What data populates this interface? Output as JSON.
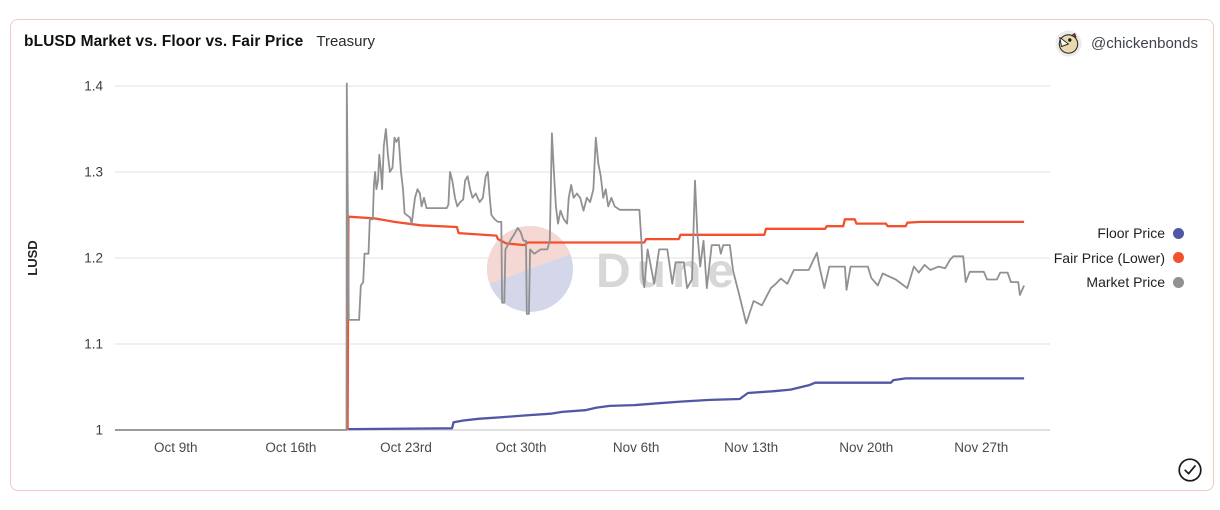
{
  "header": {
    "title": "bLUSD Market vs. Floor vs. Fair Price",
    "subtitle": "Treasury",
    "attribution": "@chickenbonds"
  },
  "watermark": {
    "text": "Dune"
  },
  "colors": {
    "card_border": "#f2c9c4",
    "floor": "#5157a4",
    "fair": "#f4502e",
    "market": "#919191",
    "grid": "#ebebeb",
    "baseline": "#e0e0e0",
    "watermark_pink": "#f5d8d3",
    "watermark_blue": "#d4d7e9",
    "watermark_text": "#d7d7d7"
  },
  "legend": [
    {
      "label": "Floor Price",
      "color": "#5157a4"
    },
    {
      "label": "Fair Price (Lower)",
      "color": "#f4502e"
    },
    {
      "label": "Market Price",
      "color": "#919191"
    }
  ],
  "chart_data": {
    "type": "line",
    "title": "bLUSD Market vs. Floor vs. Fair Price",
    "xlabel": "",
    "ylabel": "LUSD",
    "ylim": [
      1.0,
      1.42
    ],
    "xlim": [
      0,
      57
    ],
    "x_unit": "days (0 = Oct 5 2022)",
    "grid": "horizontal",
    "legend_position": "right",
    "y_ticks": [
      {
        "label": "1",
        "value": 1.0
      },
      {
        "label": "1.1",
        "value": 1.1
      },
      {
        "label": "1.2",
        "value": 1.2
      },
      {
        "label": "1.3",
        "value": 1.3
      },
      {
        "label": "1.4",
        "value": 1.4
      }
    ],
    "x_ticks": [
      {
        "label": "Oct 9th",
        "day": 3.7
      },
      {
        "label": "Oct 16th",
        "day": 10.7
      },
      {
        "label": "Oct 23rd",
        "day": 17.7
      },
      {
        "label": "Oct 30th",
        "day": 24.7
      },
      {
        "label": "Nov 6th",
        "day": 31.7
      },
      {
        "label": "Nov 13th",
        "day": 38.7
      },
      {
        "label": "Nov 20th",
        "day": 45.7
      },
      {
        "label": "Nov 27th",
        "day": 52.7
      }
    ],
    "series": [
      {
        "name": "Floor Price",
        "color": "#5157a4",
        "width": 2.3,
        "points": [
          [
            14.2,
            1.001
          ],
          [
            20.5,
            1.002
          ],
          [
            20.6,
            1.009
          ],
          [
            21.2,
            1.011
          ],
          [
            22.1,
            1.013
          ],
          [
            23.6,
            1.015
          ],
          [
            25.0,
            1.017
          ],
          [
            26.5,
            1.019
          ],
          [
            27.2,
            1.021
          ],
          [
            28.6,
            1.023
          ],
          [
            29.3,
            1.026
          ],
          [
            30.1,
            1.028
          ],
          [
            31.6,
            1.029
          ],
          [
            33.0,
            1.031
          ],
          [
            34.4,
            1.033
          ],
          [
            36.2,
            1.035
          ],
          [
            38.0,
            1.036
          ],
          [
            38.5,
            1.043
          ],
          [
            40.0,
            1.045
          ],
          [
            41.1,
            1.047
          ],
          [
            42.2,
            1.052
          ],
          [
            42.6,
            1.055
          ],
          [
            47.2,
            1.055
          ],
          [
            47.35,
            1.058
          ],
          [
            48.1,
            1.06
          ],
          [
            55.3,
            1.06
          ]
        ]
      },
      {
        "name": "Fair Price (Lower)",
        "color": "#f4502e",
        "width": 2.3,
        "points": [
          [
            14.15,
            1.0
          ],
          [
            14.2,
            1.248
          ],
          [
            15.8,
            1.246
          ],
          [
            17.0,
            1.242
          ],
          [
            18.6,
            1.238
          ],
          [
            20.8,
            1.236
          ],
          [
            20.9,
            1.229
          ],
          [
            23.2,
            1.226
          ],
          [
            23.3,
            1.222
          ],
          [
            23.8,
            1.217
          ],
          [
            24.9,
            1.215
          ],
          [
            25.1,
            1.218
          ],
          [
            32.2,
            1.218
          ],
          [
            32.3,
            1.222
          ],
          [
            34.3,
            1.222
          ],
          [
            34.4,
            1.227
          ],
          [
            39.5,
            1.227
          ],
          [
            39.6,
            1.234
          ],
          [
            43.2,
            1.234
          ],
          [
            43.3,
            1.237
          ],
          [
            44.3,
            1.237
          ],
          [
            44.4,
            1.245
          ],
          [
            45.0,
            1.245
          ],
          [
            45.1,
            1.24
          ],
          [
            46.9,
            1.24
          ],
          [
            47.0,
            1.237
          ],
          [
            48.1,
            1.237
          ],
          [
            48.2,
            1.241
          ],
          [
            49.0,
            1.242
          ],
          [
            55.3,
            1.242
          ]
        ]
      },
      {
        "name": "Market Price",
        "color": "#919191",
        "width": 1.8,
        "points": [
          [
            0,
            1.0
          ],
          [
            14.08,
            1.0
          ],
          [
            14.1,
            1.403
          ],
          [
            14.22,
            1.128
          ],
          [
            14.85,
            1.128
          ],
          [
            14.95,
            1.168
          ],
          [
            15.1,
            1.172
          ],
          [
            15.18,
            1.205
          ],
          [
            15.42,
            1.205
          ],
          [
            15.5,
            1.245
          ],
          [
            15.68,
            1.245
          ],
          [
            15.75,
            1.285
          ],
          [
            15.82,
            1.3
          ],
          [
            15.9,
            1.28
          ],
          [
            16.0,
            1.29
          ],
          [
            16.08,
            1.32
          ],
          [
            16.18,
            1.3
          ],
          [
            16.25,
            1.28
          ],
          [
            16.35,
            1.33
          ],
          [
            16.48,
            1.35
          ],
          [
            16.6,
            1.32
          ],
          [
            16.72,
            1.3
          ],
          [
            16.88,
            1.305
          ],
          [
            17.0,
            1.34
          ],
          [
            17.12,
            1.335
          ],
          [
            17.25,
            1.34
          ],
          [
            17.4,
            1.3
          ],
          [
            17.52,
            1.28
          ],
          [
            17.62,
            1.252
          ],
          [
            17.95,
            1.247
          ],
          [
            18.05,
            1.24
          ],
          [
            18.25,
            1.27
          ],
          [
            18.4,
            1.28
          ],
          [
            18.55,
            1.275
          ],
          [
            18.65,
            1.26
          ],
          [
            18.8,
            1.27
          ],
          [
            18.95,
            1.258
          ],
          [
            20.18,
            1.258
          ],
          [
            20.28,
            1.262
          ],
          [
            20.38,
            1.3
          ],
          [
            20.52,
            1.29
          ],
          [
            20.68,
            1.27
          ],
          [
            20.82,
            1.26
          ],
          [
            21.0,
            1.265
          ],
          [
            21.18,
            1.268
          ],
          [
            21.3,
            1.29
          ],
          [
            21.45,
            1.295
          ],
          [
            21.6,
            1.28
          ],
          [
            21.75,
            1.27
          ],
          [
            21.95,
            1.275
          ],
          [
            22.18,
            1.265
          ],
          [
            22.38,
            1.27
          ],
          [
            22.55,
            1.295
          ],
          [
            22.68,
            1.3
          ],
          [
            22.8,
            1.27
          ],
          [
            22.9,
            1.25
          ],
          [
            23.1,
            1.245
          ],
          [
            23.3,
            1.242
          ],
          [
            23.5,
            1.242
          ],
          [
            23.55,
            1.148
          ],
          [
            23.68,
            1.148
          ],
          [
            23.75,
            1.21
          ],
          [
            23.9,
            1.215
          ],
          [
            24.1,
            1.222
          ],
          [
            24.3,
            1.228
          ],
          [
            24.5,
            1.235
          ],
          [
            24.68,
            1.23
          ],
          [
            24.85,
            1.22
          ],
          [
            25.0,
            1.22
          ],
          [
            25.05,
            1.135
          ],
          [
            25.18,
            1.135
          ],
          [
            25.25,
            1.21
          ],
          [
            25.5,
            1.205
          ],
          [
            25.9,
            1.21
          ],
          [
            26.3,
            1.21
          ],
          [
            26.45,
            1.22
          ],
          [
            26.58,
            1.345
          ],
          [
            26.7,
            1.3
          ],
          [
            26.82,
            1.26
          ],
          [
            26.95,
            1.24
          ],
          [
            27.1,
            1.255
          ],
          [
            27.3,
            1.245
          ],
          [
            27.5,
            1.24
          ],
          [
            27.6,
            1.27
          ],
          [
            27.75,
            1.285
          ],
          [
            27.9,
            1.27
          ],
          [
            28.1,
            1.275
          ],
          [
            28.3,
            1.27
          ],
          [
            28.5,
            1.255
          ],
          [
            28.7,
            1.27
          ],
          [
            28.9,
            1.265
          ],
          [
            29.1,
            1.28
          ],
          [
            29.25,
            1.34
          ],
          [
            29.4,
            1.31
          ],
          [
            29.55,
            1.295
          ],
          [
            29.7,
            1.27
          ],
          [
            29.85,
            1.28
          ],
          [
            30.0,
            1.26
          ],
          [
            30.2,
            1.27
          ],
          [
            30.4,
            1.26
          ],
          [
            30.7,
            1.256
          ],
          [
            31.9,
            1.256
          ],
          [
            32.02,
            1.22
          ],
          [
            32.1,
            1.18
          ],
          [
            32.2,
            1.166
          ],
          [
            32.4,
            1.21
          ],
          [
            32.6,
            1.19
          ],
          [
            32.8,
            1.17
          ],
          [
            33.1,
            1.21
          ],
          [
            33.6,
            1.21
          ],
          [
            33.9,
            1.17
          ],
          [
            34.1,
            1.195
          ],
          [
            34.6,
            1.195
          ],
          [
            34.8,
            1.165
          ],
          [
            35.1,
            1.175
          ],
          [
            35.28,
            1.29
          ],
          [
            35.42,
            1.23
          ],
          [
            35.6,
            1.19
          ],
          [
            35.8,
            1.22
          ],
          [
            36.0,
            1.165
          ],
          [
            36.3,
            1.215
          ],
          [
            36.75,
            1.215
          ],
          [
            36.85,
            1.205
          ],
          [
            37.0,
            1.215
          ],
          [
            37.4,
            1.215
          ],
          [
            37.6,
            1.185
          ],
          [
            38.0,
            1.155
          ],
          [
            38.4,
            1.124
          ],
          [
            38.85,
            1.15
          ],
          [
            39.35,
            1.145
          ],
          [
            39.9,
            1.165
          ],
          [
            40.2,
            1.17
          ],
          [
            40.5,
            1.176
          ],
          [
            40.9,
            1.17
          ],
          [
            41.3,
            1.186
          ],
          [
            42.2,
            1.186
          ],
          [
            42.7,
            1.206
          ],
          [
            42.85,
            1.19
          ],
          [
            43.15,
            1.165
          ],
          [
            43.45,
            1.19
          ],
          [
            44.4,
            1.19
          ],
          [
            44.5,
            1.163
          ],
          [
            44.75,
            1.19
          ],
          [
            45.8,
            1.19
          ],
          [
            46.0,
            1.177
          ],
          [
            46.4,
            1.168
          ],
          [
            46.7,
            1.182
          ],
          [
            47.5,
            1.175
          ],
          [
            48.2,
            1.165
          ],
          [
            48.6,
            1.19
          ],
          [
            48.9,
            1.183
          ],
          [
            49.25,
            1.192
          ],
          [
            49.6,
            1.186
          ],
          [
            50.1,
            1.19
          ],
          [
            50.5,
            1.188
          ],
          [
            50.8,
            1.198
          ],
          [
            51.0,
            1.202
          ],
          [
            51.6,
            1.202
          ],
          [
            51.75,
            1.172
          ],
          [
            52.0,
            1.184
          ],
          [
            52.85,
            1.184
          ],
          [
            53.05,
            1.175
          ],
          [
            53.65,
            1.175
          ],
          [
            53.85,
            1.183
          ],
          [
            54.3,
            1.183
          ],
          [
            54.5,
            1.172
          ],
          [
            54.95,
            1.172
          ],
          [
            55.05,
            1.157
          ],
          [
            55.3,
            1.168
          ]
        ]
      }
    ]
  }
}
